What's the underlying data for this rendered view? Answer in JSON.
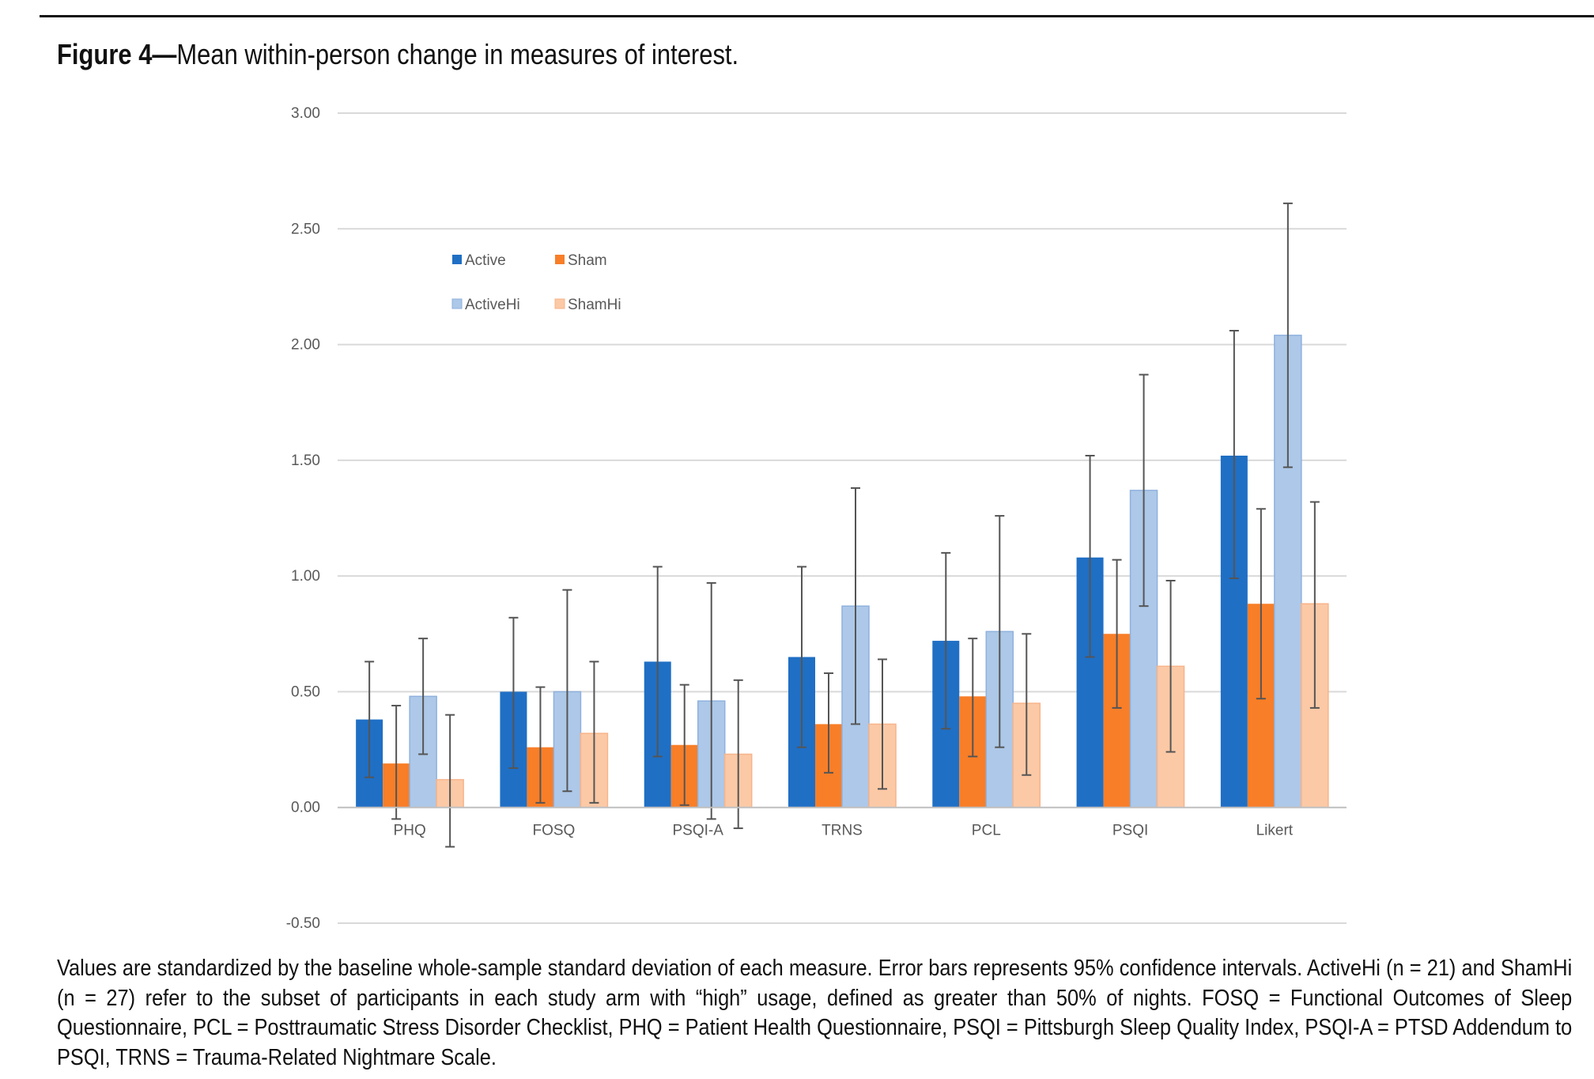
{
  "figure": {
    "label": "Figure 4—",
    "title": "Mean within-person change in measures of interest.",
    "caption": "Values are standardized by the baseline whole-sample standard deviation of each measure. Error bars represents 95% confidence intervals. ActiveHi (n = 21) and ShamHi (n = 27) refer to the subset of participants in each study arm with “high” usage, defined as greater than 50% of nights. FOSQ = Functional Outcomes of Sleep Questionnaire, PCL = Posttraumatic Stress Disorder Checklist, PHQ = Patient Health Questionnaire, PSQI = Pittsburgh Sleep Quality Index, PSQI-A = PTSD Addendum to PSQI, TRNS = Trauma-Related Nightmare Scale."
  },
  "chart_data": {
    "type": "bar",
    "title": "",
    "xlabel": "",
    "ylabel": "",
    "ylim": [
      -0.5,
      3.0
    ],
    "yticks": [
      "3.00",
      "2.50",
      "2.00",
      "1.50",
      "1.00",
      "0.50",
      "0.00",
      "-0.50"
    ],
    "ytick_values": [
      3.0,
      2.5,
      2.0,
      1.5,
      1.0,
      0.5,
      0.0,
      -0.5
    ],
    "grid": true,
    "legend_position": "top-left",
    "categories": [
      "PHQ",
      "FOSQ",
      "PSQI-A",
      "TRNS",
      "PCL",
      "PSQI",
      "Likert"
    ],
    "series": [
      {
        "name": "Active",
        "color": "#1f6fc5",
        "values": [
          0.38,
          0.5,
          0.63,
          0.65,
          0.72,
          1.08,
          1.52
        ],
        "ci_low": [
          0.13,
          0.17,
          0.22,
          0.26,
          0.34,
          0.65,
          0.99
        ],
        "ci_high": [
          0.63,
          0.82,
          1.04,
          1.04,
          1.1,
          1.52,
          2.06
        ]
      },
      {
        "name": "Sham",
        "color": "#f87e28",
        "values": [
          0.19,
          0.26,
          0.27,
          0.36,
          0.48,
          0.75,
          0.88
        ],
        "ci_low": [
          -0.05,
          0.02,
          0.01,
          0.15,
          0.22,
          0.43,
          0.47
        ],
        "ci_high": [
          0.44,
          0.52,
          0.53,
          0.58,
          0.73,
          1.07,
          1.29
        ]
      },
      {
        "name": "ActiveHi",
        "color": "#adc8e8",
        "values": [
          0.48,
          0.5,
          0.46,
          0.87,
          0.76,
          1.37,
          2.04
        ],
        "ci_low": [
          0.23,
          0.07,
          -0.05,
          0.36,
          0.26,
          0.87,
          1.47
        ],
        "ci_high": [
          0.73,
          0.94,
          0.97,
          1.38,
          1.26,
          1.87,
          2.61
        ]
      },
      {
        "name": "ShamHi",
        "color": "#fbc9a6",
        "values": [
          0.12,
          0.32,
          0.23,
          0.36,
          0.45,
          0.61,
          0.88
        ],
        "ci_low": [
          -0.17,
          0.02,
          -0.09,
          0.08,
          0.14,
          0.24,
          0.43
        ],
        "ci_high": [
          0.4,
          0.63,
          0.55,
          0.64,
          0.75,
          0.98,
          1.32
        ]
      }
    ]
  }
}
